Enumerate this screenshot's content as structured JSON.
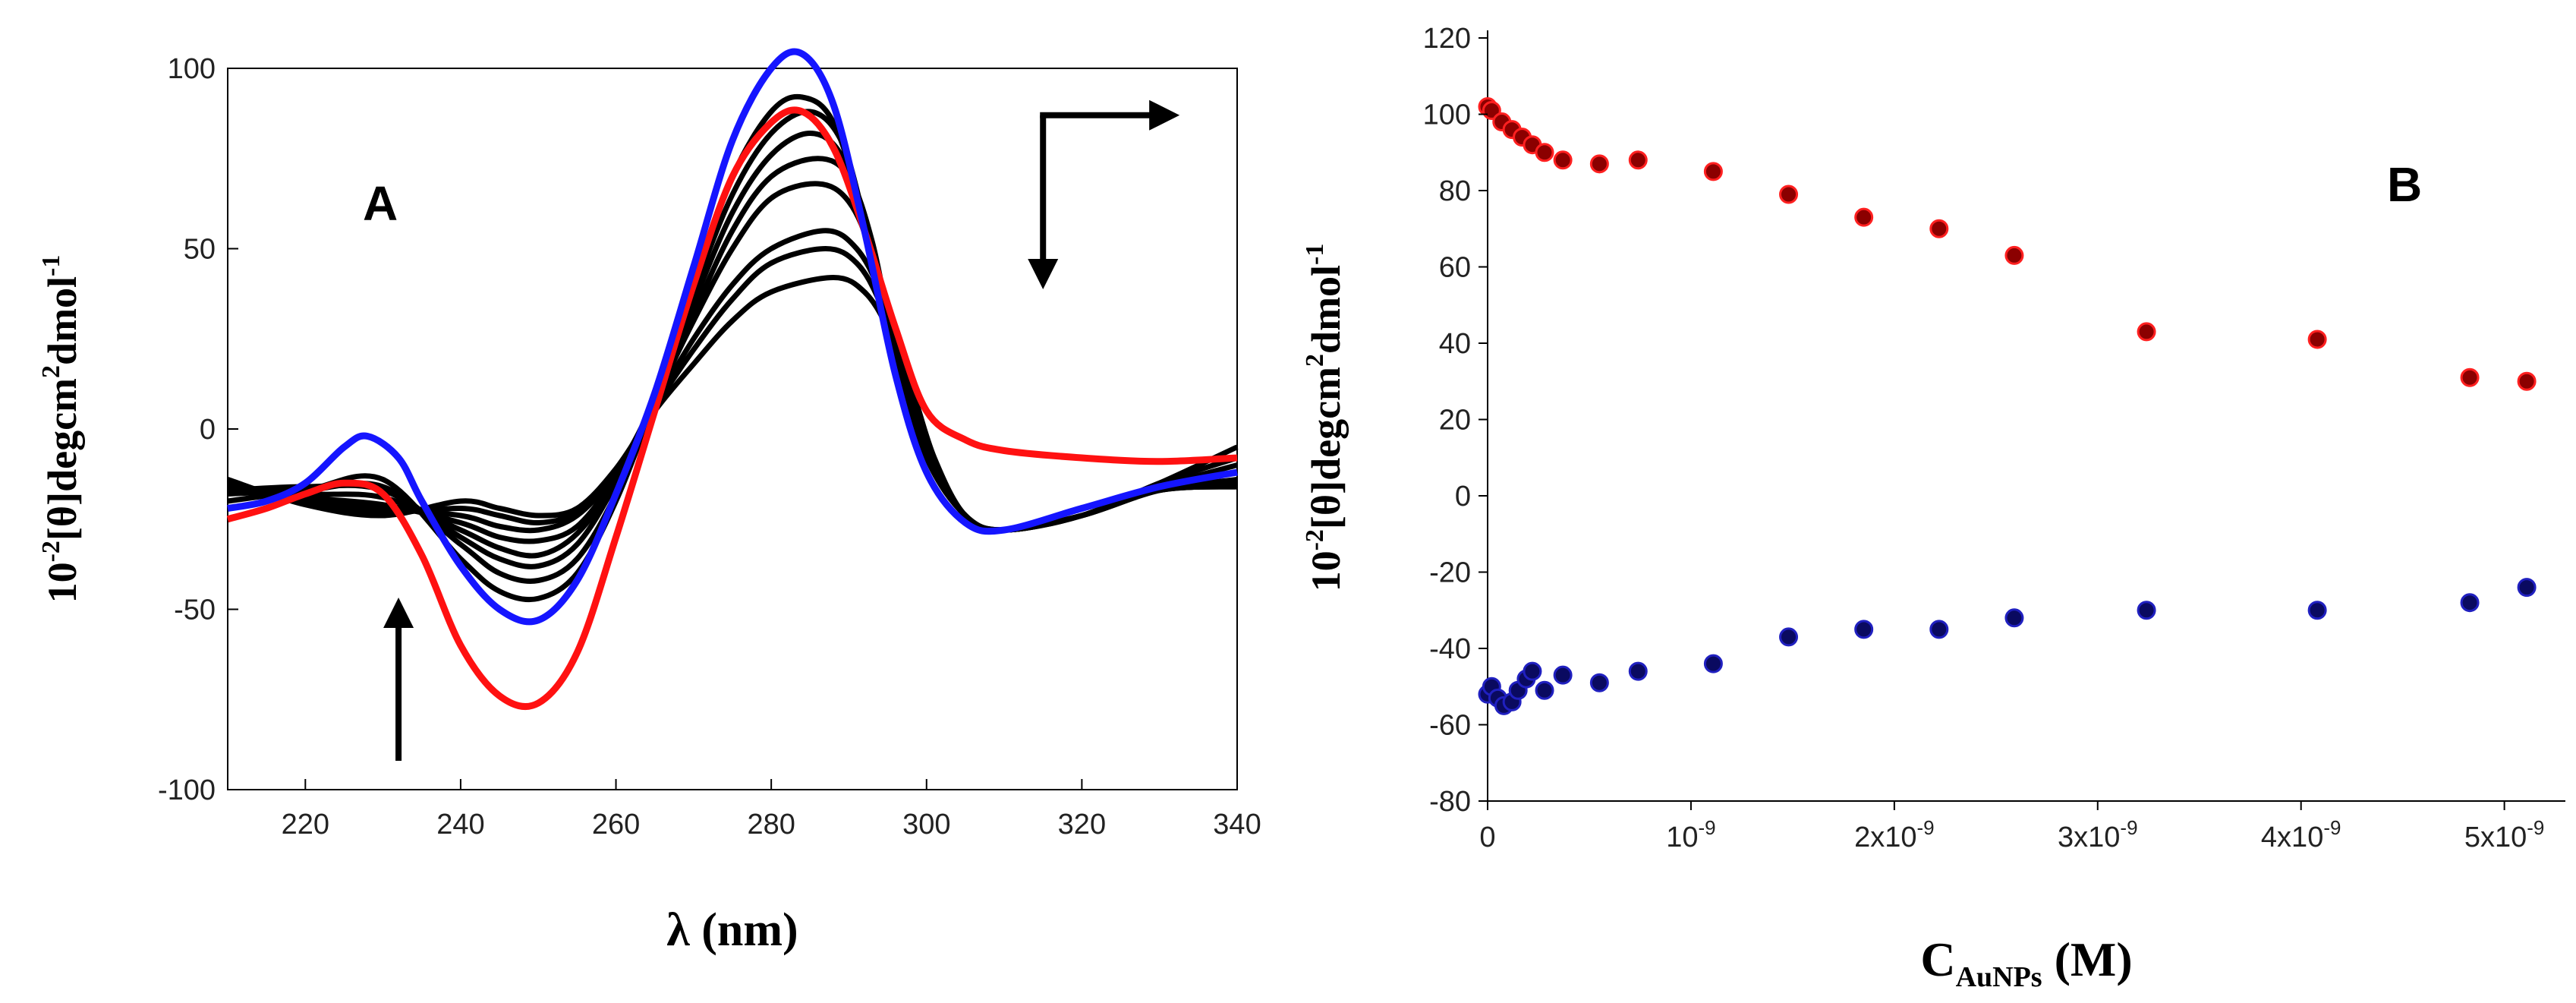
{
  "chart_data": [
    {
      "panel": "A",
      "type": "line",
      "xlabel": "λ (nm)",
      "ylabel": {
        "prefix": "10",
        "prefix_sup": "-2",
        "main": "[θ]degcm",
        "main_sup": "2",
        "unit": "dmol",
        "unit_sup": "-1"
      },
      "xlim": [
        210,
        340
      ],
      "ylim": [
        -100,
        100
      ],
      "xticks": [
        220,
        240,
        260,
        280,
        300,
        320,
        340
      ],
      "yticks": [
        -100,
        -50,
        0,
        50,
        100
      ],
      "grid": false,
      "colors": {
        "blue": "#1515ff",
        "red": "#ff1111",
        "black": "#000000"
      },
      "series": [
        {
          "color": "#1515ff",
          "x": [
            210,
            215,
            220,
            225,
            228,
            232,
            235,
            240,
            245,
            250,
            255,
            260,
            265,
            270,
            275,
            280,
            284,
            288,
            292,
            296,
            300,
            305,
            310,
            320,
            330,
            340
          ],
          "y": [
            -22,
            -20,
            -15,
            -5,
            -2,
            -8,
            -20,
            -38,
            -50,
            -53,
            -42,
            -18,
            10,
            45,
            80,
            100,
            104,
            90,
            55,
            15,
            -12,
            -26,
            -28,
            -22,
            -16,
            -12
          ]
        },
        {
          "color": "#ff1111",
          "x": [
            210,
            215,
            220,
            225,
            230,
            235,
            240,
            245,
            250,
            255,
            260,
            265,
            270,
            275,
            280,
            284,
            288,
            292,
            296,
            300,
            305,
            310,
            320,
            330,
            340
          ],
          "y": [
            -25,
            -22,
            -18,
            -15,
            -18,
            -35,
            -60,
            -74,
            -76,
            -62,
            -30,
            5,
            40,
            70,
            85,
            88,
            78,
            55,
            28,
            5,
            -3,
            -6,
            -8,
            -9,
            -8
          ]
        },
        {
          "color": "#000000",
          "x": [
            210,
            220,
            230,
            240,
            245,
            250,
            255,
            260,
            265,
            270,
            275,
            280,
            284,
            288,
            292,
            296,
            300,
            305,
            310,
            320,
            330,
            340
          ],
          "y": [
            -20,
            -17,
            -14,
            -36,
            -45,
            -47,
            -40,
            -20,
            8,
            40,
            70,
            88,
            92,
            85,
            58,
            20,
            -8,
            -24,
            -28,
            -24,
            -15,
            -5
          ]
        },
        {
          "color": "#000000",
          "x": [
            210,
            220,
            230,
            240,
            245,
            250,
            255,
            260,
            265,
            270,
            275,
            280,
            285,
            289,
            292,
            296,
            300,
            305,
            310,
            320,
            330,
            340
          ],
          "y": [
            -18,
            -17,
            -16,
            -32,
            -40,
            -42,
            -36,
            -18,
            8,
            38,
            65,
            82,
            88,
            80,
            58,
            22,
            -6,
            -24,
            -28,
            -24,
            -15,
            -8
          ]
        },
        {
          "color": "#000000",
          "x": [
            210,
            220,
            230,
            240,
            245,
            250,
            255,
            260,
            265,
            270,
            275,
            280,
            285,
            289,
            292,
            296,
            300,
            305,
            310,
            320,
            330,
            340
          ],
          "y": [
            -17,
            -16,
            -17,
            -30,
            -36,
            -38,
            -32,
            -15,
            8,
            35,
            60,
            76,
            82,
            76,
            56,
            22,
            -6,
            -24,
            -28,
            -24,
            -16,
            -10
          ]
        },
        {
          "color": "#000000",
          "x": [
            210,
            220,
            230,
            240,
            245,
            250,
            255,
            260,
            265,
            270,
            275,
            280,
            286,
            290,
            293,
            296,
            300,
            305,
            310,
            320,
            330,
            340
          ],
          "y": [
            -16,
            -18,
            -19,
            -28,
            -33,
            -35,
            -29,
            -14,
            8,
            32,
            55,
            70,
            75,
            70,
            52,
            22,
            -6,
            -24,
            -28,
            -24,
            -16,
            -12
          ]
        },
        {
          "color": "#000000",
          "x": [
            210,
            220,
            230,
            240,
            245,
            250,
            255,
            260,
            265,
            270,
            275,
            280,
            286,
            290,
            293,
            296,
            300,
            305,
            310,
            320,
            330,
            340
          ],
          "y": [
            -16,
            -19,
            -21,
            -26,
            -30,
            -31,
            -27,
            -13,
            8,
            30,
            50,
            64,
            68,
            63,
            48,
            20,
            -6,
            -24,
            -28,
            -24,
            -17,
            -14
          ]
        },
        {
          "color": "#000000",
          "x": [
            210,
            220,
            230,
            240,
            245,
            250,
            255,
            260,
            265,
            270,
            275,
            280,
            287,
            291,
            294,
            297,
            300,
            305,
            310,
            320,
            330,
            340
          ],
          "y": [
            -15,
            -20,
            -22,
            -24,
            -27,
            -28,
            -24,
            -12,
            7,
            25,
            40,
            50,
            55,
            50,
            38,
            18,
            -6,
            -24,
            -28,
            -24,
            -17,
            -15
          ]
        },
        {
          "color": "#000000",
          "x": [
            210,
            220,
            230,
            240,
            245,
            250,
            255,
            260,
            265,
            270,
            275,
            280,
            287,
            291,
            294,
            297,
            300,
            305,
            310,
            320,
            330,
            340
          ],
          "y": [
            -15,
            -20,
            -23,
            -22,
            -24,
            -26,
            -23,
            -12,
            6,
            22,
            36,
            46,
            50,
            46,
            35,
            16,
            -6,
            -24,
            -28,
            -24,
            -17,
            -16
          ]
        },
        {
          "color": "#000000",
          "x": [
            210,
            220,
            230,
            240,
            245,
            250,
            255,
            260,
            265,
            270,
            275,
            280,
            288,
            292,
            295,
            298,
            301,
            305,
            310,
            320,
            330,
            340
          ],
          "y": [
            -14,
            -21,
            -24,
            -20,
            -22,
            -24,
            -22,
            -11,
            5,
            18,
            30,
            38,
            42,
            38,
            28,
            12,
            -8,
            -24,
            -28,
            -24,
            -17,
            -16
          ]
        }
      ],
      "annotations": [
        {
          "type": "arrow-up",
          "x": 232,
          "y_from": -92,
          "y_to": -48
        },
        {
          "type": "arrow-corner",
          "x": 315,
          "y_top": 87,
          "y_bottom": 40,
          "x_to": 332
        }
      ]
    },
    {
      "panel": "B",
      "type": "scatter",
      "xlabel": {
        "main": "C",
        "sub": "AuNPs",
        "unit": " (M)"
      },
      "ylabel": {
        "prefix": "10",
        "prefix_sup": "-2",
        "main": "[θ]degcm",
        "main_sup": "2",
        "unit": "dmol",
        "unit_sup": "-1"
      },
      "xlim": [
        0,
        5.3e-09
      ],
      "ylim": [
        -80,
        120
      ],
      "xticks": [
        {
          "value": 0,
          "base": "0",
          "exp": ""
        },
        {
          "value": 1e-09,
          "base": "10",
          "exp": "-9"
        },
        {
          "value": 2e-09,
          "base": "2x10",
          "exp": "-9"
        },
        {
          "value": 3e-09,
          "base": "3x10",
          "exp": "-9"
        },
        {
          "value": 4e-09,
          "base": "4x10",
          "exp": "-9"
        },
        {
          "value": 5e-09,
          "base": "5x10",
          "exp": "-9"
        }
      ],
      "yticks": [
        -80,
        -60,
        -40,
        -20,
        0,
        20,
        40,
        60,
        80,
        100,
        120
      ],
      "grid": false,
      "series": [
        {
          "color": "#8b0000",
          "edge": "#ff2020",
          "x": [
            0,
            2e-11,
            7e-11,
            1.2e-10,
            1.7e-10,
            2.2e-10,
            2.8e-10,
            3.7e-10,
            5.5e-10,
            7.4e-10,
            1.11e-09,
            1.48e-09,
            1.85e-09,
            2.22e-09,
            2.59e-09,
            3.24e-09,
            4.08e-09,
            4.83e-09,
            5.11e-09
          ],
          "y": [
            102,
            101,
            98,
            96,
            94,
            92,
            90,
            88,
            87,
            88,
            85,
            79,
            73,
            70,
            63,
            43,
            41,
            31,
            30
          ]
        },
        {
          "color": "#0a0a60",
          "edge": "#2020c0",
          "x": [
            0,
            2e-11,
            5e-11,
            8e-11,
            1.2e-10,
            1.5e-10,
            1.9e-10,
            2.2e-10,
            2.8e-10,
            3.7e-10,
            5.5e-10,
            7.4e-10,
            1.11e-09,
            1.48e-09,
            1.85e-09,
            2.22e-09,
            2.59e-09,
            3.24e-09,
            4.08e-09,
            4.83e-09,
            5.11e-09
          ],
          "y": [
            -52,
            -50,
            -53,
            -55,
            -54,
            -51,
            -48,
            -46,
            -51,
            -47,
            -49,
            -46,
            -44,
            -37,
            -35,
            -35,
            -32,
            -30,
            -30,
            -28,
            -24
          ]
        }
      ]
    }
  ]
}
